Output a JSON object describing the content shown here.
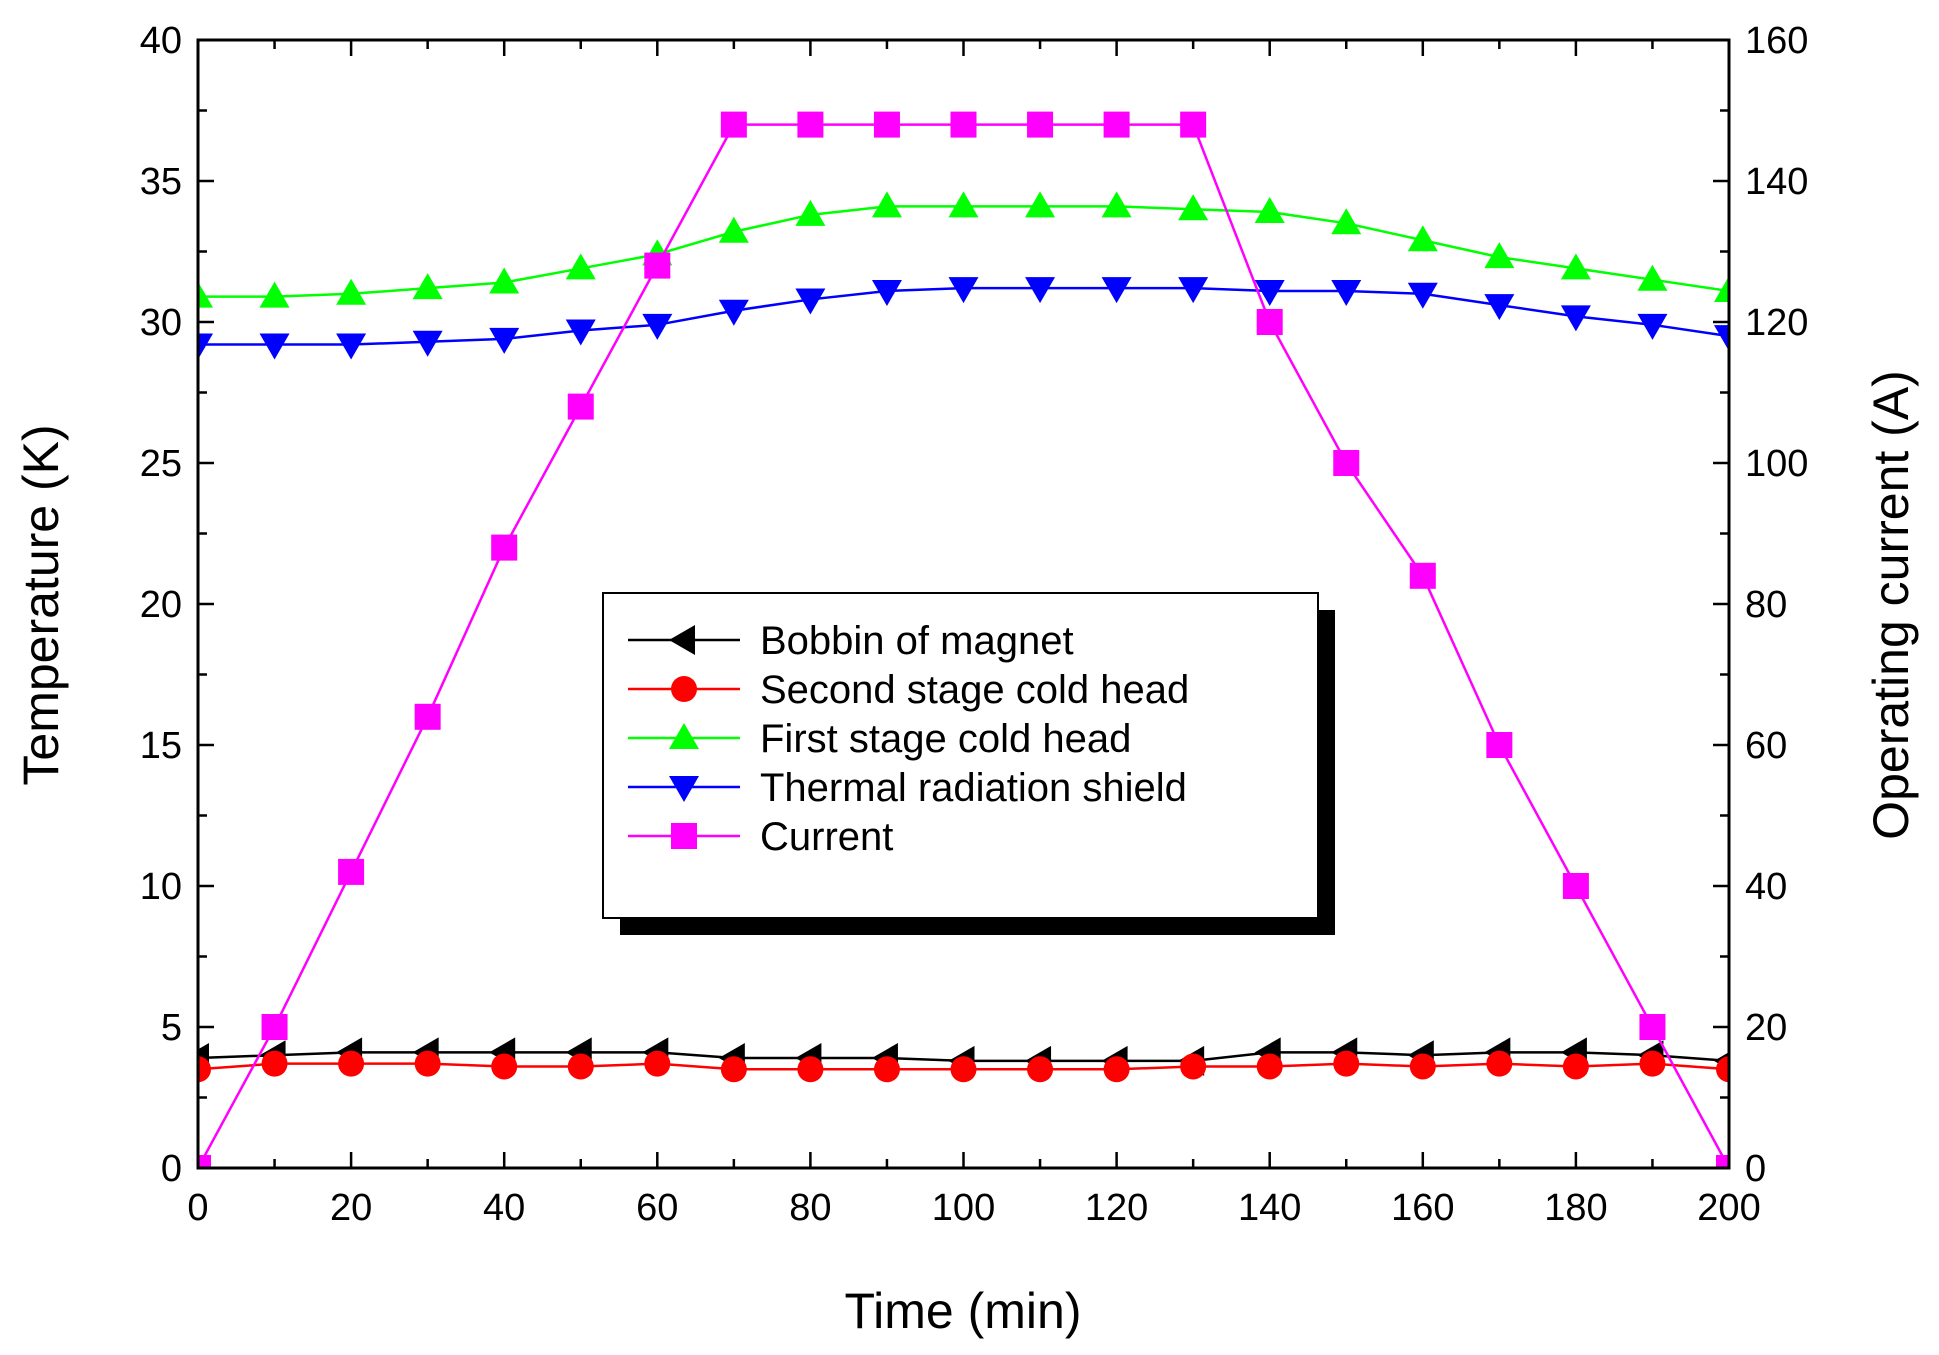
{
  "chart_data": {
    "type": "line",
    "x": [
      0,
      10,
      20,
      30,
      40,
      50,
      60,
      70,
      80,
      90,
      100,
      110,
      120,
      130,
      140,
      150,
      160,
      170,
      180,
      190,
      200
    ],
    "xlabel": "Time (min)",
    "ylabel_left": "Temperature (K)",
    "ylabel_right": "Operating current (A)",
    "xlim": [
      0,
      200
    ],
    "ylim_left": [
      0,
      40
    ],
    "ylim_right": [
      0,
      160
    ],
    "xticks": [
      0,
      20,
      40,
      60,
      80,
      100,
      120,
      140,
      160,
      180,
      200
    ],
    "yticks_left": [
      0,
      5,
      10,
      15,
      20,
      25,
      30,
      35,
      40
    ],
    "yticks_right": [
      0,
      20,
      40,
      60,
      80,
      100,
      120,
      140,
      160
    ],
    "legend_position": "center",
    "series": [
      {
        "name": "Bobbin of magnet",
        "axis": "left",
        "color": "#000000",
        "marker": "triangle-left",
        "values": [
          3.9,
          4.0,
          4.1,
          4.1,
          4.1,
          4.1,
          4.1,
          3.9,
          3.9,
          3.9,
          3.8,
          3.8,
          3.8,
          3.8,
          4.1,
          4.1,
          4.0,
          4.1,
          4.1,
          4.0,
          3.8
        ]
      },
      {
        "name": "Second stage cold head",
        "axis": "left",
        "color": "#ff0000",
        "marker": "circle",
        "values": [
          3.5,
          3.7,
          3.7,
          3.7,
          3.6,
          3.6,
          3.7,
          3.5,
          3.5,
          3.5,
          3.5,
          3.5,
          3.5,
          3.6,
          3.6,
          3.7,
          3.6,
          3.7,
          3.6,
          3.7,
          3.5
        ]
      },
      {
        "name": "First stage cold head",
        "axis": "left",
        "color": "#00ff00",
        "marker": "triangle-up",
        "values": [
          30.9,
          30.9,
          31.0,
          31.2,
          31.4,
          31.9,
          32.4,
          33.2,
          33.8,
          34.1,
          34.1,
          34.1,
          34.1,
          34.0,
          33.9,
          33.5,
          32.9,
          32.3,
          31.9,
          31.5,
          31.1
        ]
      },
      {
        "name": "Thermal radiation shield",
        "axis": "left",
        "color": "#0000ff",
        "marker": "triangle-down",
        "values": [
          29.2,
          29.2,
          29.2,
          29.3,
          29.4,
          29.7,
          29.9,
          30.4,
          30.8,
          31.1,
          31.2,
          31.2,
          31.2,
          31.2,
          31.1,
          31.1,
          31.0,
          30.6,
          30.2,
          29.9,
          29.5
        ]
      },
      {
        "name": "Current",
        "axis": "right",
        "color": "#ff00ff",
        "marker": "square",
        "values": [
          0,
          20,
          42,
          64,
          88,
          108,
          128,
          148,
          148,
          148,
          148,
          148,
          148,
          148,
          120,
          100,
          84,
          60,
          40,
          20,
          0
        ]
      }
    ]
  }
}
